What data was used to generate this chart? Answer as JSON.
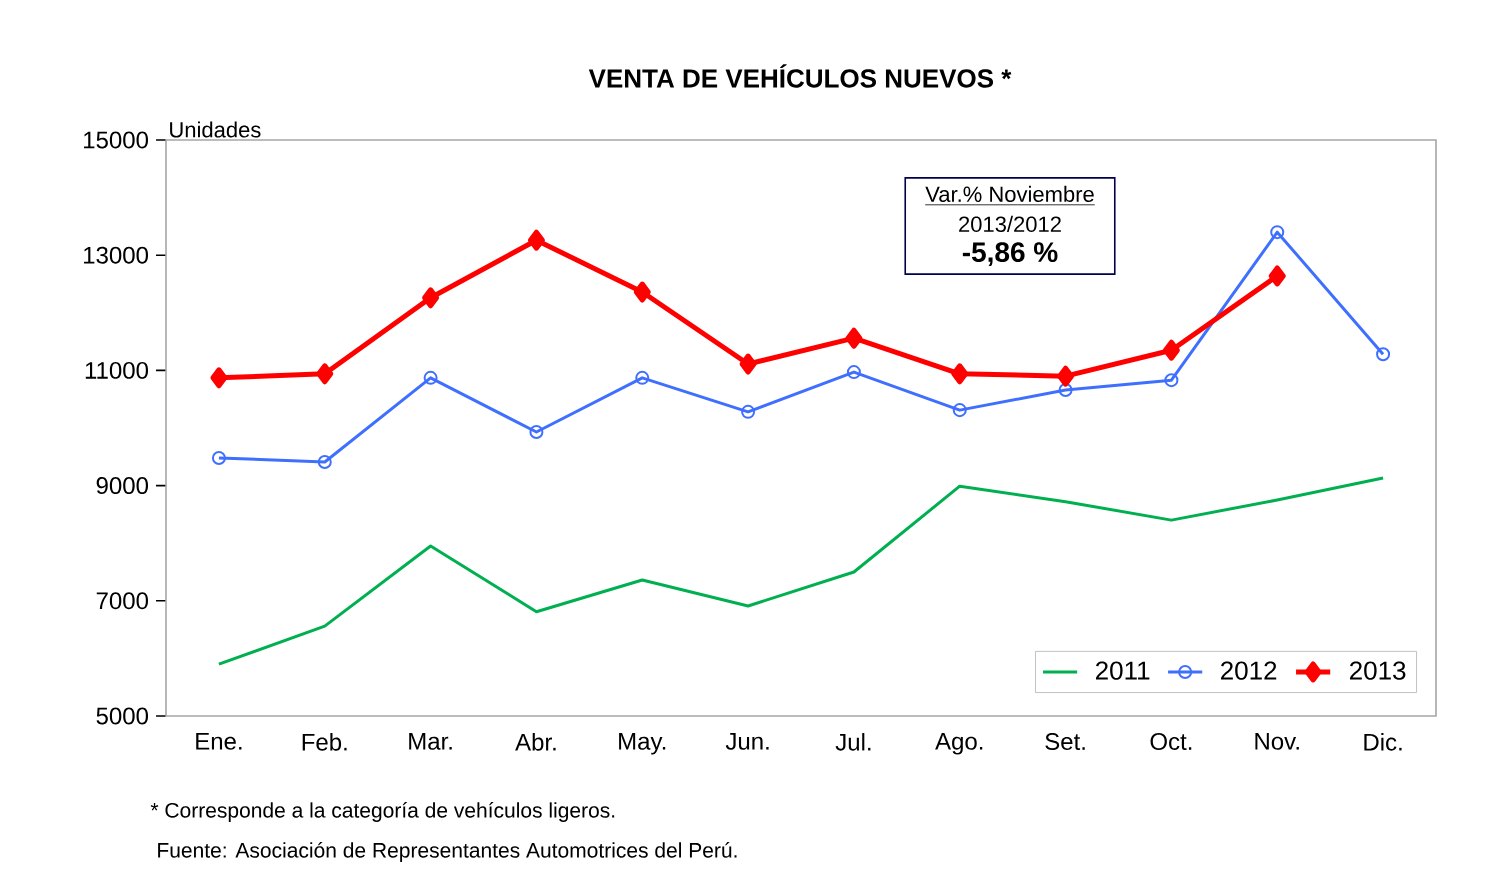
{
  "chart_data": {
    "type": "line",
    "title": "VENTA DE VEHÍCULOS NUEVOS *",
    "ylabel": "Unidades",
    "categories": [
      "Ene.",
      "Feb.",
      "Mar.",
      "Abr.",
      "May.",
      "Jun.",
      "Jul.",
      "Ago.",
      "Set.",
      "Oct.",
      "Nov.",
      "Dic."
    ],
    "series": [
      {
        "name": "2011",
        "color": "#00b050",
        "marker": "none",
        "values": [
          5900,
          6560,
          7950,
          6810,
          7360,
          6910,
          7500,
          8990,
          8720,
          8400,
          8750,
          9130
        ]
      },
      {
        "name": "2012",
        "color": "#3f6fff",
        "marker": "circle",
        "values": [
          9480,
          9410,
          10870,
          9930,
          10870,
          10280,
          10970,
          10310,
          10660,
          10830,
          13400,
          11280
        ]
      },
      {
        "name": "2013",
        "color": "#ff0000",
        "marker": "diamond",
        "values": [
          10870,
          10940,
          12260,
          13260,
          12360,
          11110,
          11560,
          10940,
          10900,
          11350,
          12640,
          null
        ]
      }
    ],
    "ylim": [
      5000,
      15000
    ],
    "yticks": [
      5000,
      7000,
      9000,
      11000,
      13000,
      15000
    ],
    "grid": false,
    "legend": "bottom right",
    "annotations": [
      "Var.% Noviembre",
      "2013/2012",
      "-5,86 %",
      "* Corresponde a la categoría de vehículos ligeros.",
      "Fuente: Asociación de Representantes  Automotrices del Perú."
    ]
  }
}
